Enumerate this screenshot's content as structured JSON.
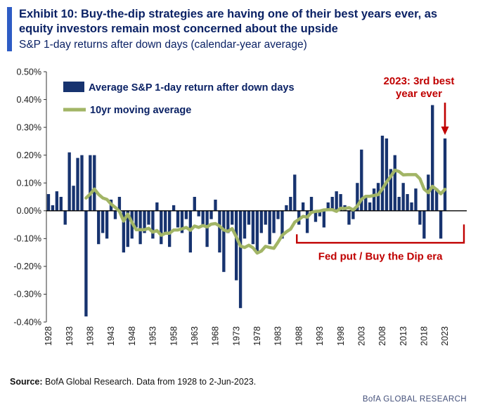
{
  "header": {
    "title": "Exhibit 10: Buy-the-dip strategies are having one of their best years ever, as equity investors remain most concerned about the upside",
    "subtitle": "S&P 1-day returns after down days (calendar-year average)"
  },
  "legend": {
    "bar_label": "Average S&P 1-day return after down days",
    "line_label": "10yr moving average"
  },
  "annotations": {
    "best_year_line1": "2023: 3rd best",
    "best_year_line2": "year ever",
    "best_year_target": 2023,
    "fed_put_label": "Fed put / Buy the Dip era",
    "fed_put_start_year": 1988,
    "fed_put_end_year": 2023
  },
  "footer": {
    "source_label": "Source:",
    "source_text": " BofA Global Research. Data from 1928 to 2-Jun-2023.",
    "brand": "BofA GLOBAL RESEARCH"
  },
  "colors": {
    "bar": "#17336f",
    "line": "#a2b566",
    "annotation": "#c00000",
    "title": "#0b2265",
    "accent_stripe": "#2e5cc5",
    "axis": "#333333",
    "tick_text": "#1a1a1a",
    "brand": "#44507a"
  },
  "chart_data": {
    "type": "bar",
    "title": "S&P 1-day returns after down days (calendar-year average)",
    "x": {
      "start": 1928,
      "end": 2023,
      "step": 1
    },
    "series": [
      {
        "name": "Average S&P 1-day return after down days",
        "type": "bar",
        "unit": "%",
        "values": [
          0.06,
          0.02,
          0.07,
          0.05,
          -0.05,
          0.21,
          0.09,
          0.19,
          0.2,
          -0.38,
          0.2,
          0.2,
          -0.12,
          -0.08,
          -0.1,
          0.04,
          -0.03,
          0.05,
          -0.15,
          -0.13,
          -0.1,
          -0.06,
          -0.12,
          -0.08,
          -0.05,
          -0.1,
          0.03,
          -0.12,
          -0.08,
          -0.13,
          0.02,
          -0.06,
          -0.08,
          -0.03,
          -0.15,
          0.05,
          -0.02,
          -0.05,
          -0.13,
          -0.03,
          0.04,
          -0.15,
          -0.22,
          -0.08,
          -0.05,
          -0.25,
          -0.35,
          -0.1,
          -0.05,
          -0.12,
          -0.15,
          -0.08,
          -0.05,
          -0.12,
          -0.08,
          -0.03,
          -0.1,
          0.02,
          0.05,
          0.13,
          -0.05,
          0.03,
          -0.08,
          0.05,
          -0.04,
          -0.02,
          -0.06,
          0.03,
          0.05,
          0.07,
          0.06,
          0.02,
          -0.05,
          -0.03,
          0.1,
          0.22,
          0.05,
          0.03,
          0.08,
          0.1,
          0.27,
          0.26,
          0.15,
          0.2,
          0.05,
          0.1,
          0.06,
          0.03,
          0.08,
          -0.05,
          -0.1,
          0.13,
          0.38,
          0.08,
          -0.1,
          0.26
        ]
      },
      {
        "name": "10yr moving average",
        "type": "line",
        "unit": "%",
        "derived": "trailing 10-year mean of bar series",
        "window": 10
      }
    ],
    "ylim": [
      -0.4,
      0.5
    ],
    "yticks": [
      0.5,
      0.4,
      0.3,
      0.2,
      0.1,
      0.0,
      -0.1,
      -0.2,
      -0.3,
      -0.4
    ],
    "ytick_suffix": "%",
    "xticks": [
      1928,
      1933,
      1938,
      1943,
      1948,
      1953,
      1958,
      1963,
      1968,
      1973,
      1978,
      1983,
      1988,
      1993,
      1998,
      2003,
      2008,
      2013,
      2018,
      2023
    ],
    "grid": false,
    "legend_position": "top-left"
  }
}
